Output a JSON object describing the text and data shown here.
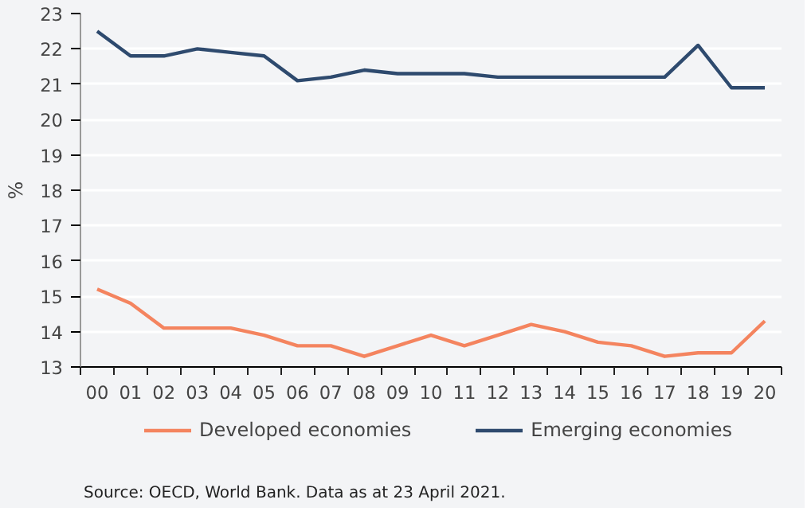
{
  "chart_data": {
    "type": "line",
    "ylabel": "%",
    "categories": [
      "00",
      "01",
      "02",
      "03",
      "04",
      "05",
      "06",
      "07",
      "08",
      "09",
      "10",
      "11",
      "12",
      "13",
      "14",
      "15",
      "16",
      "17",
      "18",
      "19",
      "20"
    ],
    "series": [
      {
        "name": "Developed economies",
        "color": "#f4845f",
        "values": [
          15.2,
          14.8,
          14.1,
          14.1,
          14.1,
          13.9,
          13.6,
          13.6,
          13.3,
          13.6,
          13.9,
          13.6,
          13.9,
          14.2,
          14.0,
          13.7,
          13.6,
          13.3,
          13.4,
          13.4,
          14.3
        ]
      },
      {
        "name": "Emerging economies",
        "color": "#2e4a6e",
        "values": [
          22.5,
          21.8,
          21.8,
          22.0,
          21.9,
          21.8,
          21.1,
          21.2,
          21.4,
          21.3,
          21.3,
          21.3,
          21.2,
          21.2,
          21.2,
          21.2,
          21.2,
          21.2,
          22.1,
          20.9,
          20.9
        ]
      }
    ],
    "ylim": [
      13,
      23
    ],
    "yticks": [
      13,
      14,
      15,
      16,
      17,
      18,
      19,
      20,
      21,
      22,
      23
    ],
    "grid": "y",
    "legend": "bottom",
    "marker": "none",
    "line_style": "solid",
    "annotations": [
      "Source: OECD, World Bank. Data as at 23 April 2021."
    ]
  }
}
